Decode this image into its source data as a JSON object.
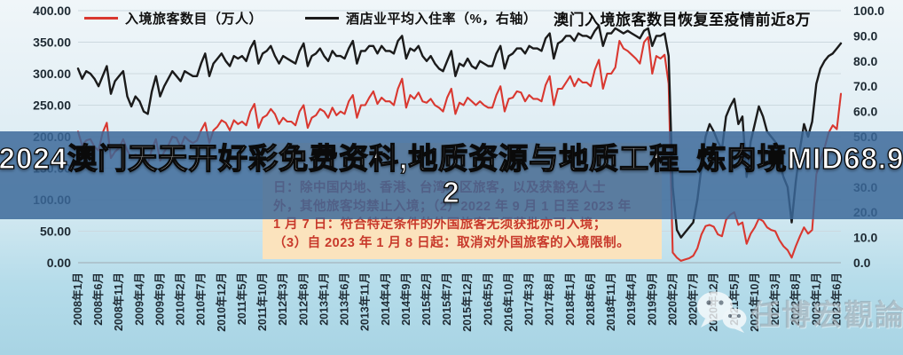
{
  "legend": {
    "series1_label": "入境旅客数目（万人）",
    "series2_label": "酒店业平均入住率（%，右轴）"
  },
  "title": "澳门入境旅客数目恢复至疫情前近8万",
  "overlay_banner": {
    "line1": "2024澳门天天开好彩免费资科,地质资源与地质工程_炼肉境MID68.9",
    "line2": "2"
  },
  "annotation": {
    "lines": [
      "日：除中国内地、香港、台湾地区旅客，以及获豁免人士",
      "外，其他旅客均禁止入境；（2）2022 年 9 月 1 日至 2023 年",
      "1 月 7 日：符合特定条件的外国旅客无须获批亦可入境；",
      "（3）自 2023 年 1 月 8 日起：取消对外国旅客的入境限制。"
    ]
  },
  "watermark": {
    "text": "任博宏觀論道",
    "icon": "wechat-icon"
  },
  "colors": {
    "visitors_line": "#d93830",
    "occupancy_line": "#1b1b1b",
    "banner_bg": "rgba(58,104,152,0.84)",
    "annotation_bg": "#fbe3bd",
    "annotation_text": "#c8392b",
    "gridline": "#ccd9df",
    "tick_label": "#1e2a33"
  },
  "chart_data": {
    "type": "line",
    "title": "澳门入境旅客数目恢复至疫情前近8万",
    "x_interval": "monthly",
    "x_start": "2008年1月",
    "x_end": "2023年7月",
    "x_tick_labels": [
      "2008年1月",
      "2008年6月",
      "2008年11月",
      "2009年4月",
      "2009年9月",
      "2010年2月",
      "2010年7月",
      "2010年12月",
      "2011年5月",
      "2011年10月",
      "2012年3月",
      "2012年8月",
      "2013年1月",
      "2013年6月",
      "2013年11月",
      "2014年4月",
      "2014年9月",
      "2015年2月",
      "2015年7月",
      "2015年12月",
      "2016年5月",
      "2016年10月",
      "2017年3月",
      "2017年8月",
      "2018年1月",
      "2018年6月",
      "2018年11月",
      "2019年4月",
      "2019年9月",
      "2020年2月",
      "2020年7月",
      "2020年12月",
      "2021年5月",
      "2021年10月",
      "2022年3月",
      "2022年8月",
      "2023年1月",
      "2023年6月"
    ],
    "x_tick_step": 5,
    "left_axis": {
      "min": 0,
      "max": 400,
      "ticks": [
        "400.00",
        "350.00",
        "300.00",
        "250.00",
        "200.00",
        "150.00",
        "100.00",
        "50.00",
        "0.00"
      ]
    },
    "right_axis": {
      "min": 0,
      "max": 100,
      "ticks": [
        "100.0",
        "90.0",
        "80.0",
        "70.0",
        "60.0",
        "50.0",
        "40.0",
        "30.0",
        "20.0",
        "10.0",
        "0.0"
      ]
    },
    "grid": true,
    "legend_position": "top",
    "series": [
      {
        "name": "入境旅客数目（万人）",
        "axis": "left",
        "color": "#d93830",
        "values": [
          208,
          186,
          194,
          196,
          184,
          178,
          206,
          222,
          166,
          176,
          182,
          196,
          178,
          166,
          172,
          168,
          160,
          156,
          180,
          196,
          162,
          176,
          186,
          200,
          198,
          184,
          200,
          194,
          190,
          194,
          210,
          222,
          190,
          210,
          216,
          226,
          222,
          210,
          226,
          220,
          224,
          218,
          240,
          252,
          214,
          230,
          234,
          244,
          236,
          220,
          230,
          224,
          224,
          218,
          240,
          250,
          214,
          230,
          234,
          244,
          240,
          230,
          246,
          234,
          240,
          236,
          256,
          266,
          230,
          250,
          250,
          262,
          272,
          252,
          262,
          256,
          256,
          250,
          276,
          292,
          246,
          266,
          260,
          270,
          256,
          254,
          260,
          250,
          246,
          240,
          262,
          276,
          236,
          254,
          250,
          262,
          256,
          250,
          256,
          250,
          246,
          246,
          266,
          280,
          240,
          260,
          262,
          272,
          270,
          256,
          266,
          260,
          260,
          256,
          282,
          296,
          250,
          276,
          276,
          286,
          296,
          280,
          292,
          286,
          286,
          280,
          306,
          322,
          276,
          300,
          300,
          310,
          352,
          340,
          336,
          330,
          324,
          316,
          350,
          358,
          300,
          328,
          324,
          330,
          284,
          16,
          8,
          3,
          5,
          7,
          11,
          23,
          45,
          58,
          60,
          57,
          45,
          42,
          68,
          76,
          80,
          60,
          64,
          30,
          46,
          56,
          70,
          66,
          56,
          52,
          50,
          36,
          26,
          20,
          8,
          26,
          42,
          56,
          46,
          52,
          140,
          162,
          182,
          206,
          218,
          212,
          268
        ]
      },
      {
        "name": "酒店业平均入住率（%，右轴）",
        "axis": "right",
        "color": "#1b1b1b",
        "values": [
          77,
          73,
          76,
          75,
          73,
          70,
          74,
          78,
          67,
          72,
          74,
          76,
          66,
          62,
          66,
          64,
          60,
          59,
          68,
          74,
          66,
          70,
          73,
          76,
          74,
          72,
          76,
          75,
          74,
          74,
          79,
          83,
          74,
          79,
          81,
          83,
          80,
          78,
          82,
          81,
          82,
          80,
          85,
          88,
          79,
          83,
          84,
          86,
          82,
          79,
          82,
          81,
          80,
          79,
          84,
          87,
          78,
          82,
          83,
          85,
          82,
          80,
          84,
          82,
          82,
          81,
          85,
          88,
          79,
          84,
          84,
          86,
          86,
          83,
          86,
          84,
          84,
          83,
          88,
          90,
          81,
          85,
          84,
          86,
          82,
          80,
          82,
          79,
          77,
          76,
          80,
          84,
          74,
          79,
          78,
          81,
          78,
          77,
          80,
          79,
          78,
          78,
          83,
          86,
          77,
          82,
          83,
          85,
          85,
          83,
          86,
          85,
          85,
          84,
          89,
          91,
          81,
          87,
          88,
          90,
          90,
          88,
          91,
          90,
          90,
          89,
          92,
          94,
          86,
          91,
          91,
          93,
          92,
          91,
          92,
          91,
          90,
          89,
          92,
          93,
          86,
          90,
          90,
          91,
          82,
          30,
          13,
          10,
          12,
          14,
          16,
          25,
          38,
          50,
          55,
          52,
          48,
          45,
          58,
          62,
          65,
          55,
          58,
          34,
          48,
          55,
          62,
          58,
          52,
          50,
          48,
          40,
          34,
          30,
          16,
          32,
          45,
          55,
          50,
          56,
          71,
          77,
          80,
          82,
          83,
          85,
          87
        ]
      }
    ]
  }
}
